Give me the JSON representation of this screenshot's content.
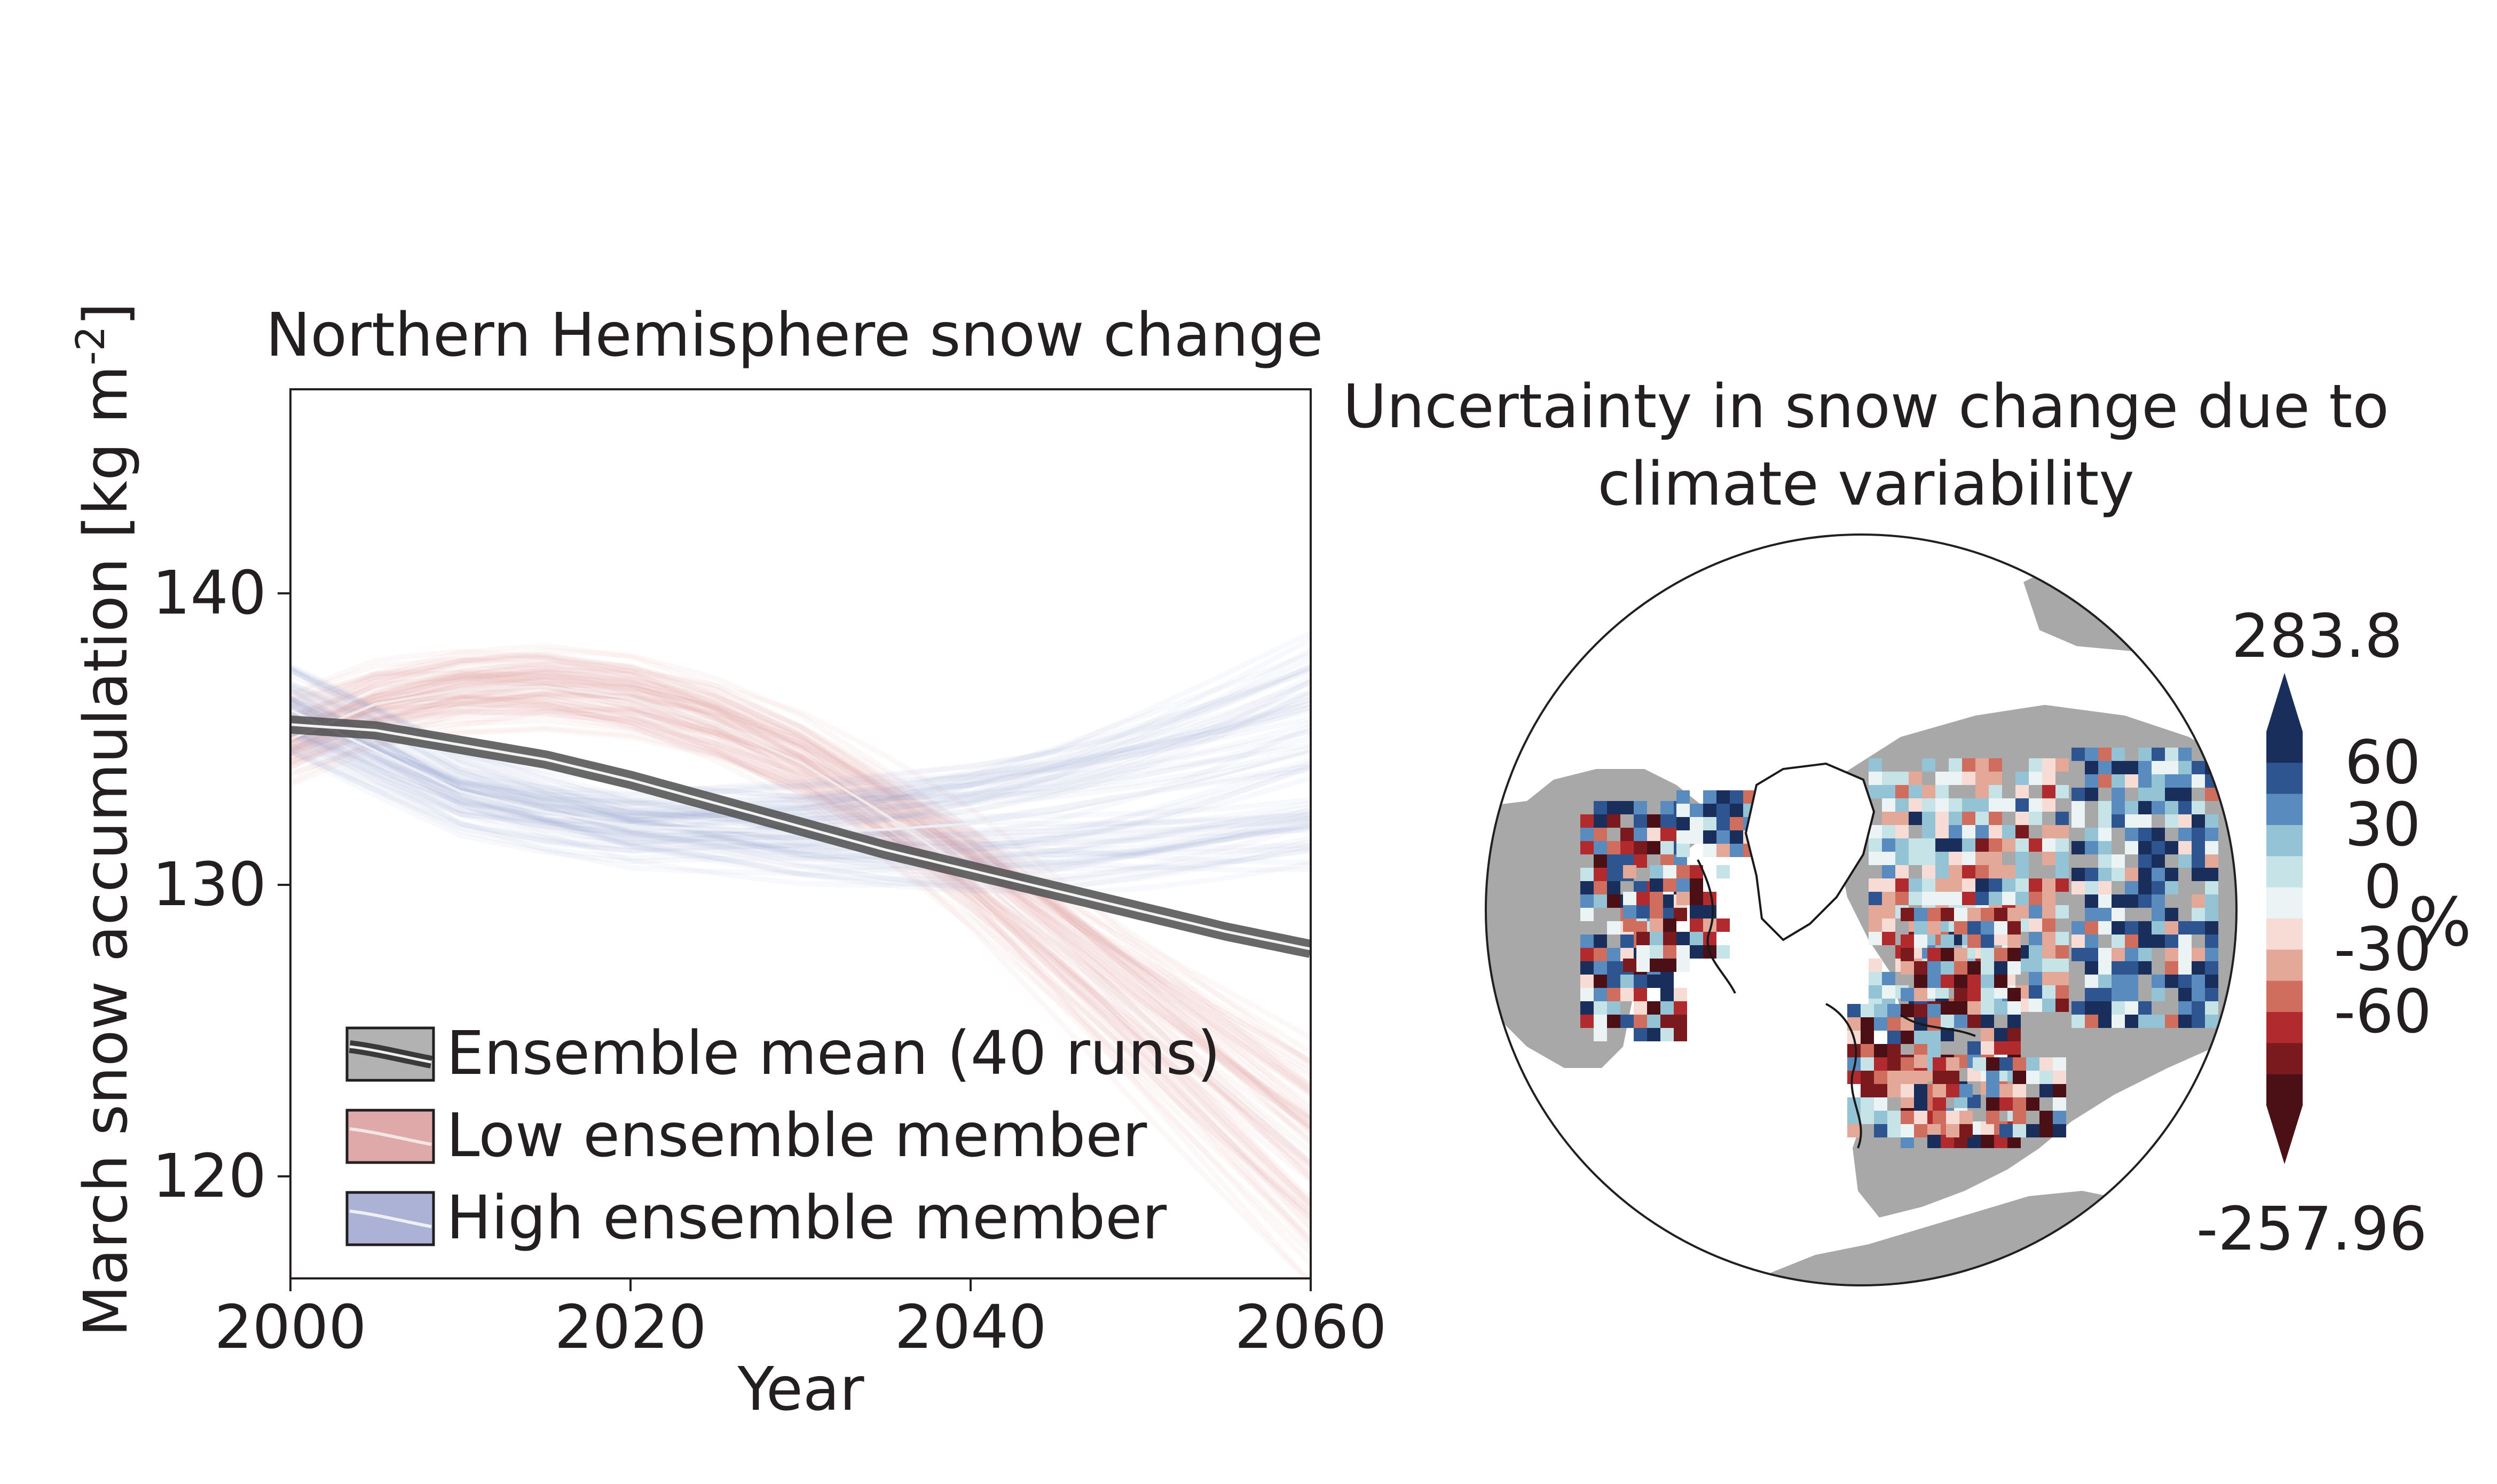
{
  "chart_data": [
    {
      "type": "line",
      "title": "Northern Hemisphere snow change",
      "xlabel": "Year",
      "ylabel": "March snow accumulation [kg m",
      "ylabel_superscript": "-2",
      "ylabel_close": "]",
      "xlim": [
        2000,
        2060
      ],
      "ylim": [
        116.5,
        147.0
      ],
      "xticks": [
        "2000",
        "2020",
        "2040",
        "2060"
      ],
      "yticks": [
        "120",
        "130",
        "140"
      ],
      "x": [
        2000,
        2005,
        2010,
        2015,
        2020,
        2025,
        2030,
        2035,
        2040,
        2045,
        2050,
        2055,
        2060
      ],
      "series": [
        {
          "name": "Ensemble mean (40 runs)",
          "color": "#4d4d4d",
          "values": [
            135.5,
            135.3,
            134.8,
            134.3,
            133.6,
            132.8,
            132.0,
            131.2,
            130.5,
            129.8,
            129.1,
            128.4,
            127.8
          ]
        },
        {
          "name": "Low ensemble member",
          "color": "#d98a8a",
          "values": [
            135.0,
            136.2,
            136.7,
            136.8,
            136.4,
            135.5,
            134.2,
            132.4,
            130.4,
            128.0,
            125.5,
            123.0,
            120.5
          ]
        },
        {
          "name": "High ensemble member",
          "color": "#8f97c4",
          "values": [
            136.0,
            134.6,
            133.2,
            132.5,
            132.0,
            131.9,
            131.8,
            131.9,
            132.1,
            132.5,
            133.1,
            133.8,
            134.6
          ]
        }
      ],
      "grid": false,
      "legend_position": "bottom-left"
    },
    {
      "type": "heatmap",
      "title_line1": "Uncertainty in snow change due to",
      "title_line2": "climate variability",
      "projection": "north polar stereographic",
      "colorbar": {
        "unit": "%",
        "max_label": "283.8",
        "min_label": "-257.96",
        "tick_labels": [
          "60",
          "30",
          "0",
          "-30",
          "-60"
        ],
        "colors": [
          "#1a2e5c",
          "#2e5590",
          "#5a8bbf",
          "#94c3d6",
          "#c6e4e8",
          "#ecf3f5",
          "#f6dcd5",
          "#e4a898",
          "#cf6e5e",
          "#b02a2e",
          "#7a1a1f",
          "#4a1015"
        ]
      },
      "land_color": "#a8a8a8"
    }
  ]
}
